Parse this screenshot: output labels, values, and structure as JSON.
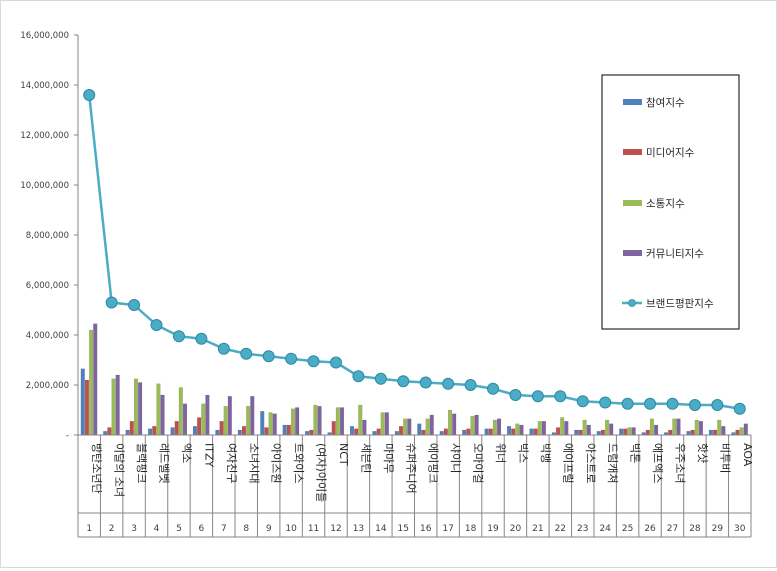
{
  "chart_data": {
    "type": "bar",
    "title": "",
    "xlabel": "",
    "ylabel": "",
    "ylim": [
      0,
      16000000
    ],
    "y_ticks": [
      "-",
      "2,000,000",
      "4,000,000",
      "6,000,000",
      "8,000,000",
      "10,000,000",
      "12,000,000",
      "14,000,000",
      "16,000,000"
    ],
    "grid": false,
    "legend_position": "right",
    "categories": [
      "방탄소년단",
      "이달의 소녀",
      "블랙핑크",
      "레드벨벳",
      "엑소",
      "ITZY",
      "여자친구",
      "소녀시대",
      "아이즈원",
      "트와이스",
      "(여자)아이들",
      "NCT",
      "세븐틴",
      "마마무",
      "슈퍼주니어",
      "에이핑크",
      "샤이니",
      "오마이걸",
      "위너",
      "빅스",
      "빅뱅",
      "에이프릴",
      "아스트로",
      "드림캐쳐",
      "빅톤",
      "에프엑스",
      "우주소녀",
      "핫샷",
      "비투비",
      "AOA"
    ],
    "ranks": [
      "1",
      "2",
      "3",
      "4",
      "5",
      "6",
      "7",
      "8",
      "9",
      "10",
      "11",
      "12",
      "13",
      "14",
      "15",
      "16",
      "17",
      "18",
      "19",
      "20",
      "21",
      "22",
      "23",
      "24",
      "25",
      "26",
      "27",
      "28",
      "29",
      "30"
    ],
    "series": [
      {
        "name": "참여지수",
        "kind": "bar",
        "color": "#4f81bd",
        "values": [
          2650000,
          150000,
          200000,
          250000,
          300000,
          350000,
          200000,
          200000,
          950000,
          400000,
          150000,
          100000,
          350000,
          150000,
          150000,
          450000,
          150000,
          200000,
          250000,
          350000,
          250000,
          100000,
          200000,
          150000,
          250000,
          100000,
          100000,
          150000,
          200000,
          100000
        ]
      },
      {
        "name": "미디어지수",
        "kind": "bar",
        "color": "#c0504d",
        "values": [
          2200000,
          300000,
          550000,
          350000,
          550000,
          700000,
          550000,
          350000,
          300000,
          400000,
          200000,
          550000,
          250000,
          250000,
          350000,
          200000,
          250000,
          250000,
          250000,
          250000,
          250000,
          300000,
          200000,
          200000,
          250000,
          200000,
          200000,
          200000,
          200000,
          200000
        ]
      },
      {
        "name": "소통지수",
        "kind": "bar",
        "color": "#9bbb59",
        "values": [
          4200000,
          2250000,
          2250000,
          2050000,
          1900000,
          1250000,
          1150000,
          1150000,
          900000,
          1050000,
          1200000,
          1100000,
          1200000,
          900000,
          650000,
          650000,
          1000000,
          750000,
          600000,
          450000,
          550000,
          700000,
          600000,
          600000,
          300000,
          650000,
          650000,
          600000,
          600000,
          300000
        ]
      },
      {
        "name": "커뮤니티지수",
        "kind": "bar",
        "color": "#8064a2",
        "values": [
          4450000,
          2400000,
          2100000,
          1600000,
          1250000,
          1600000,
          1550000,
          1550000,
          850000,
          1100000,
          1150000,
          1100000,
          600000,
          900000,
          650000,
          800000,
          850000,
          800000,
          650000,
          400000,
          550000,
          550000,
          400000,
          450000,
          300000,
          400000,
          650000,
          550000,
          350000,
          450000
        ]
      },
      {
        "name": "브랜드평판지수",
        "kind": "line",
        "color": "#4bacc6",
        "values": [
          13600000,
          5300000,
          5200000,
          4400000,
          3950000,
          3850000,
          3450000,
          3250000,
          3150000,
          3050000,
          2950000,
          2900000,
          2350000,
          2250000,
          2150000,
          2100000,
          2050000,
          2000000,
          1850000,
          1600000,
          1550000,
          1550000,
          1350000,
          1300000,
          1250000,
          1250000,
          1250000,
          1200000,
          1200000,
          1050000
        ]
      }
    ]
  }
}
